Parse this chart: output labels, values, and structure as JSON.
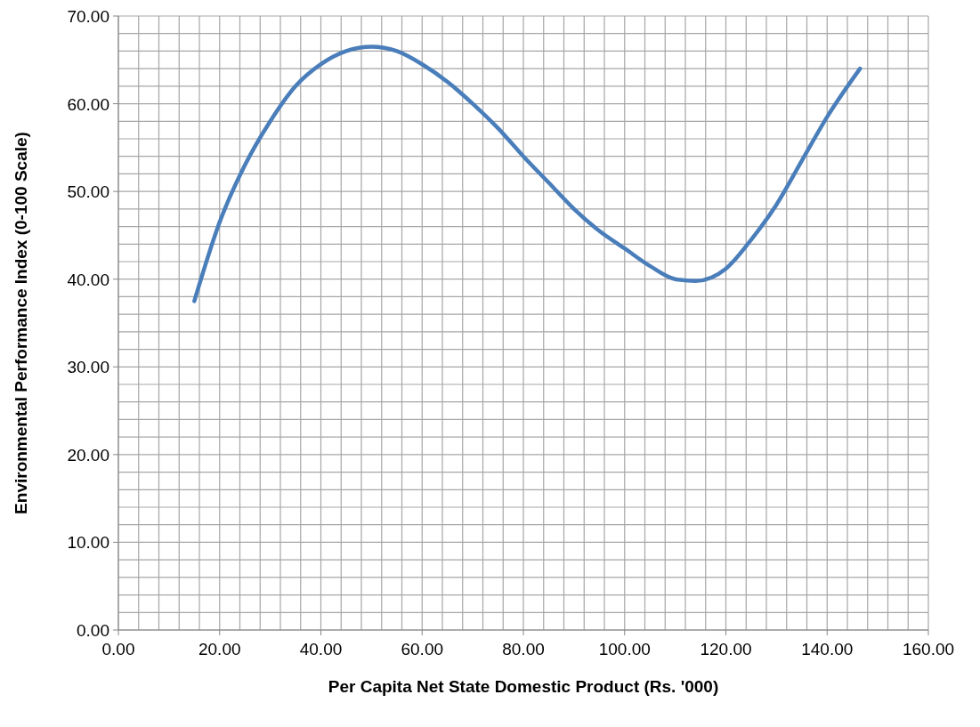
{
  "chart_data": {
    "type": "line",
    "xlabel": "Per Capita Net State Domestic Product (Rs. '000)",
    "ylabel": "Environmental Performance Index (0-100 Scale)",
    "x": [
      15,
      20,
      25,
      30,
      35,
      40,
      45,
      50,
      55,
      60,
      65,
      70,
      75,
      80,
      85,
      90,
      95,
      100,
      105,
      110,
      114,
      120,
      125,
      130,
      135,
      140,
      146.5
    ],
    "series": [
      {
        "color": "#4a7ebb",
        "values": [
          37.5,
          46.5,
          53,
          58,
          62,
          64.5,
          66,
          66.5,
          66,
          64.5,
          62.5,
          60,
          57.2,
          54,
          51,
          48,
          45.5,
          43.5,
          41.5,
          40,
          39.8,
          41.2,
          44.5,
          48.5,
          53.5,
          58.5,
          64
        ]
      }
    ],
    "xlim": [
      0,
      160
    ],
    "ylim": [
      0,
      70
    ],
    "xticks": [
      {
        "value": 0,
        "label": "0.00"
      },
      {
        "value": 4,
        "label": null
      },
      {
        "value": 8,
        "label": null
      },
      {
        "value": 12,
        "label": null
      },
      {
        "value": 16,
        "label": null
      },
      {
        "value": 20,
        "label": "20.00"
      },
      {
        "value": 24,
        "label": null
      },
      {
        "value": 28,
        "label": null
      },
      {
        "value": 32,
        "label": null
      },
      {
        "value": 36,
        "label": null
      },
      {
        "value": 40,
        "label": "40.00"
      },
      {
        "value": 44,
        "label": null
      },
      {
        "value": 48,
        "label": null
      },
      {
        "value": 52,
        "label": null
      },
      {
        "value": 56,
        "label": null
      },
      {
        "value": 60,
        "label": "60.00"
      },
      {
        "value": 64,
        "label": null
      },
      {
        "value": 68,
        "label": null
      },
      {
        "value": 72,
        "label": null
      },
      {
        "value": 76,
        "label": null
      },
      {
        "value": 80,
        "label": "80.00"
      },
      {
        "value": 84,
        "label": null
      },
      {
        "value": 88,
        "label": null
      },
      {
        "value": 92,
        "label": null
      },
      {
        "value": 96,
        "label": null
      },
      {
        "value": 100,
        "label": "100.00"
      },
      {
        "value": 104,
        "label": null
      },
      {
        "value": 108,
        "label": null
      },
      {
        "value": 112,
        "label": null
      },
      {
        "value": 116,
        "label": null
      },
      {
        "value": 120,
        "label": "120.00"
      },
      {
        "value": 124,
        "label": null
      },
      {
        "value": 128,
        "label": null
      },
      {
        "value": 132,
        "label": null
      },
      {
        "value": 136,
        "label": null
      },
      {
        "value": 140,
        "label": "140.00"
      },
      {
        "value": 144,
        "label": null
      },
      {
        "value": 148,
        "label": null
      },
      {
        "value": 152,
        "label": null
      },
      {
        "value": 156,
        "label": null
      },
      {
        "value": 160,
        "label": "160.00"
      }
    ],
    "yticks": [
      {
        "value": 0,
        "label": "0.00"
      },
      {
        "value": 2,
        "label": null
      },
      {
        "value": 4,
        "label": null
      },
      {
        "value": 6,
        "label": null
      },
      {
        "value": 8,
        "label": null
      },
      {
        "value": 10,
        "label": "10.00"
      },
      {
        "value": 12,
        "label": null
      },
      {
        "value": 14,
        "label": null
      },
      {
        "value": 16,
        "label": null
      },
      {
        "value": 18,
        "label": null
      },
      {
        "value": 20,
        "label": "20.00"
      },
      {
        "value": 22,
        "label": null
      },
      {
        "value": 24,
        "label": null
      },
      {
        "value": 26,
        "label": null
      },
      {
        "value": 28,
        "label": null
      },
      {
        "value": 30,
        "label": "30.00"
      },
      {
        "value": 32,
        "label": null
      },
      {
        "value": 34,
        "label": null
      },
      {
        "value": 36,
        "label": null
      },
      {
        "value": 38,
        "label": null
      },
      {
        "value": 40,
        "label": "40.00"
      },
      {
        "value": 42,
        "label": null
      },
      {
        "value": 44,
        "label": null
      },
      {
        "value": 46,
        "label": null
      },
      {
        "value": 48,
        "label": null
      },
      {
        "value": 50,
        "label": "50.00"
      },
      {
        "value": 52,
        "label": null
      },
      {
        "value": 54,
        "label": null
      },
      {
        "value": 56,
        "label": null
      },
      {
        "value": 58,
        "label": null
      },
      {
        "value": 60,
        "label": "60.00"
      },
      {
        "value": 62,
        "label": null
      },
      {
        "value": 64,
        "label": null
      },
      {
        "value": 66,
        "label": null
      },
      {
        "value": 68,
        "label": null
      },
      {
        "value": 70,
        "label": "70.00"
      }
    ],
    "grid": true,
    "marker": "none",
    "line_style": "solid"
  }
}
